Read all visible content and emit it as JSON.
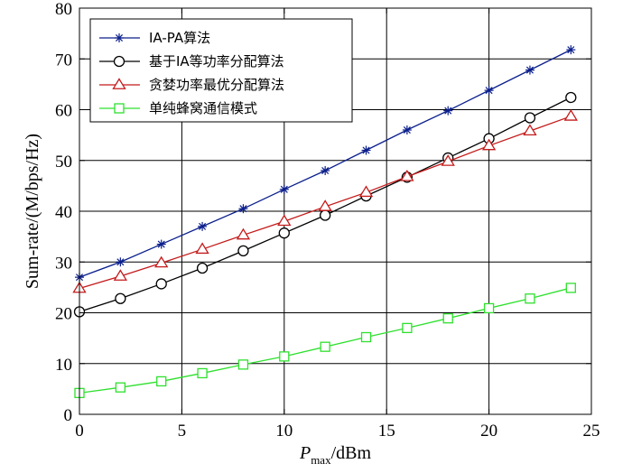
{
  "chart_data": {
    "type": "line",
    "xlabel_main": "P",
    "xlabel_sub": "max",
    "xlabel_unit": "/dBm",
    "ylabel": "Sum-rate/(M/bps/Hz)",
    "xlim": [
      0,
      25
    ],
    "ylim": [
      0,
      80
    ],
    "xticks": [
      0,
      5,
      10,
      15,
      20,
      25
    ],
    "yticks": [
      0,
      10,
      20,
      30,
      40,
      50,
      60,
      70,
      80
    ],
    "grid": true,
    "legend_position": "top-left",
    "x": [
      0,
      2,
      4,
      6,
      8,
      10,
      12,
      14,
      16,
      18,
      20,
      22,
      24
    ],
    "series": [
      {
        "name": "IA-PA算法",
        "color": "#0b1f8c",
        "marker": "asterisk",
        "values": [
          27.0,
          30.0,
          33.5,
          37.0,
          40.5,
          44.3,
          48.0,
          52.0,
          56.0,
          59.8,
          63.8,
          67.8,
          71.8
        ]
      },
      {
        "name": "基于IA等功率分配算法",
        "color": "#000000",
        "marker": "circle",
        "values": [
          20.2,
          22.8,
          25.7,
          28.8,
          32.2,
          35.7,
          39.2,
          43.0,
          46.7,
          50.5,
          54.3,
          58.4,
          62.4
        ]
      },
      {
        "name": "贪婪功率最优分配算法",
        "color": "#c41a1a",
        "marker": "triangle",
        "values": [
          24.8,
          27.2,
          29.8,
          32.5,
          35.3,
          38.0,
          40.9,
          43.7,
          46.8,
          49.8,
          52.9,
          55.8,
          58.7
        ]
      },
      {
        "name": "单纯蜂窝通信模式",
        "color": "#2ee02e",
        "marker": "square",
        "values": [
          4.2,
          5.3,
          6.5,
          8.1,
          9.8,
          11.4,
          13.3,
          15.2,
          17.0,
          18.9,
          20.9,
          22.8,
          24.9
        ]
      }
    ]
  }
}
